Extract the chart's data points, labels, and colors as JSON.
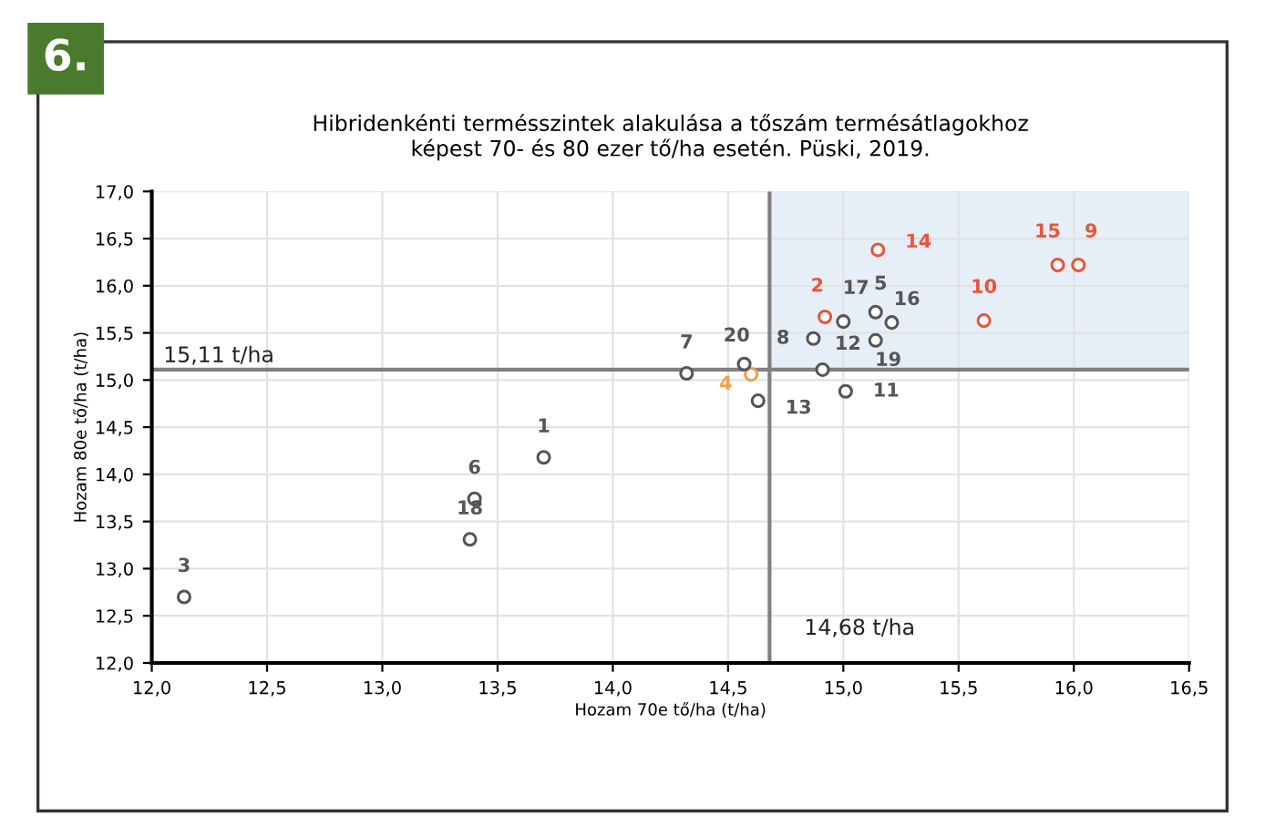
{
  "chart_data": {
    "type": "scatter",
    "title": "Hibridenkénti termésszintek alakulása a tőszám termésátlagokhoz\nképest 70- és 80 ezer tő/ha esetén. Püski, 2019.",
    "xlabel": "Hozam 70e tő/ha (t/ha)",
    "ylabel": "Hozam 80e tő/ha (t/ha)",
    "annotations": [
      "6.",
      {
        "text": "1",
        "x": 13.7,
        "y": 14.18
      },
      {
        "text": "2",
        "x": 14.92,
        "y": 15.67
      },
      {
        "text": "3",
        "x": 12.14,
        "y": 12.7
      },
      {
        "text": "4",
        "x": 14.6,
        "y": 15.06
      },
      {
        "text": "5",
        "x": 15.14,
        "y": 15.72
      },
      {
        "text": "6",
        "x": 13.4,
        "y": 13.74
      },
      {
        "text": "7",
        "x": 14.32,
        "y": 15.07
      },
      {
        "text": "8",
        "x": 14.87,
        "y": 15.44
      },
      {
        "text": "9",
        "x": 16.02,
        "y": 16.22
      },
      {
        "text": "10",
        "x": 15.61,
        "y": 15.63
      },
      {
        "text": "11",
        "x": 15.01,
        "y": 14.88
      },
      {
        "text": "12",
        "x": 14.91,
        "y": 15.11
      },
      {
        "text": "13",
        "x": 14.63,
        "y": 14.78
      },
      {
        "text": "14",
        "x": 15.15,
        "y": 16.38
      },
      {
        "text": "15",
        "x": 15.93,
        "y": 16.22
      },
      {
        "text": "16",
        "x": 15.21,
        "y": 15.61
      },
      {
        "text": "17",
        "x": 15.0,
        "y": 15.62
      },
      {
        "text": "18",
        "x": 13.38,
        "y": 13.31
      },
      {
        "text": "19",
        "x": 15.14,
        "y": 15.42
      },
      {
        "text": "20",
        "x": 14.57,
        "y": 15.17
      }
    ],
    "x": [
      13.7,
      14.92,
      12.14,
      14.6,
      15.14,
      13.4,
      14.32,
      14.87,
      16.02,
      15.61,
      15.01,
      14.91,
      14.63,
      15.15,
      15.93,
      15.21,
      15.0,
      13.38,
      15.14,
      14.57
    ],
    "values": [
      14.18,
      15.67,
      12.7,
      15.06,
      15.72,
      13.74,
      15.07,
      15.44,
      16.22,
      15.63,
      14.88,
      15.11,
      14.78,
      16.38,
      16.22,
      15.61,
      15.62,
      13.31,
      15.42,
      15.17
    ],
    "colors": [
      "#555555",
      "#e8553a",
      "#555555",
      "#f0a04b",
      "#555555",
      "#555555",
      "#555555",
      "#555555",
      "#e8553a",
      "#e8553a",
      "#555555",
      "#555555",
      "#555555",
      "#e8553a",
      "#e8553a",
      "#555555",
      "#555555",
      "#555555",
      "#555555",
      "#555555"
    ],
    "marker": "circle",
    "xlim": [
      12.0,
      16.5
    ],
    "xticks": [
      {
        "value": 12.0,
        "label": "12,0"
      },
      {
        "value": 12.5,
        "label": "12,5"
      },
      {
        "value": 13.0,
        "label": "13,0"
      },
      {
        "value": 13.5,
        "label": "13,5"
      },
      {
        "value": 14.0,
        "label": "14,0"
      },
      {
        "value": 14.5,
        "label": "14,5"
      },
      {
        "value": 15.0,
        "label": "15,0"
      },
      {
        "value": 15.5,
        "label": "15,5"
      },
      {
        "value": 16.0,
        "label": "16,0"
      },
      {
        "value": 16.5,
        "label": "16,5"
      }
    ],
    "ylim": [
      12.0,
      17.0
    ],
    "yticks": [
      {
        "value": 12.0,
        "label": "12,0"
      },
      {
        "value": 12.5,
        "label": "12,5"
      },
      {
        "value": 13.0,
        "label": "13,0"
      },
      {
        "value": 13.5,
        "label": "13,5"
      },
      {
        "value": 14.0,
        "label": "14,0"
      },
      {
        "value": 14.5,
        "label": "14,5"
      },
      {
        "value": 15.0,
        "label": "15,0"
      },
      {
        "value": 15.5,
        "label": "15,5"
      },
      {
        "value": 16.0,
        "label": "16,0"
      },
      {
        "value": 16.5,
        "label": "16,5"
      },
      {
        "value": 17.0,
        "label": "17,0"
      }
    ],
    "grid": true,
    "ref_lines": [
      {
        "axis": "x",
        "value": 14.68,
        "label": "14,68 t/ha",
        "color": "#808080"
      },
      {
        "axis": "y",
        "value": 15.11,
        "label": "15,11 t/ha",
        "color": "#808080"
      }
    ],
    "bands": [
      {
        "axis": "x",
        "from": 14.68,
        "to": 16.5,
        "color": "#e6eef8"
      }
    ]
  }
}
